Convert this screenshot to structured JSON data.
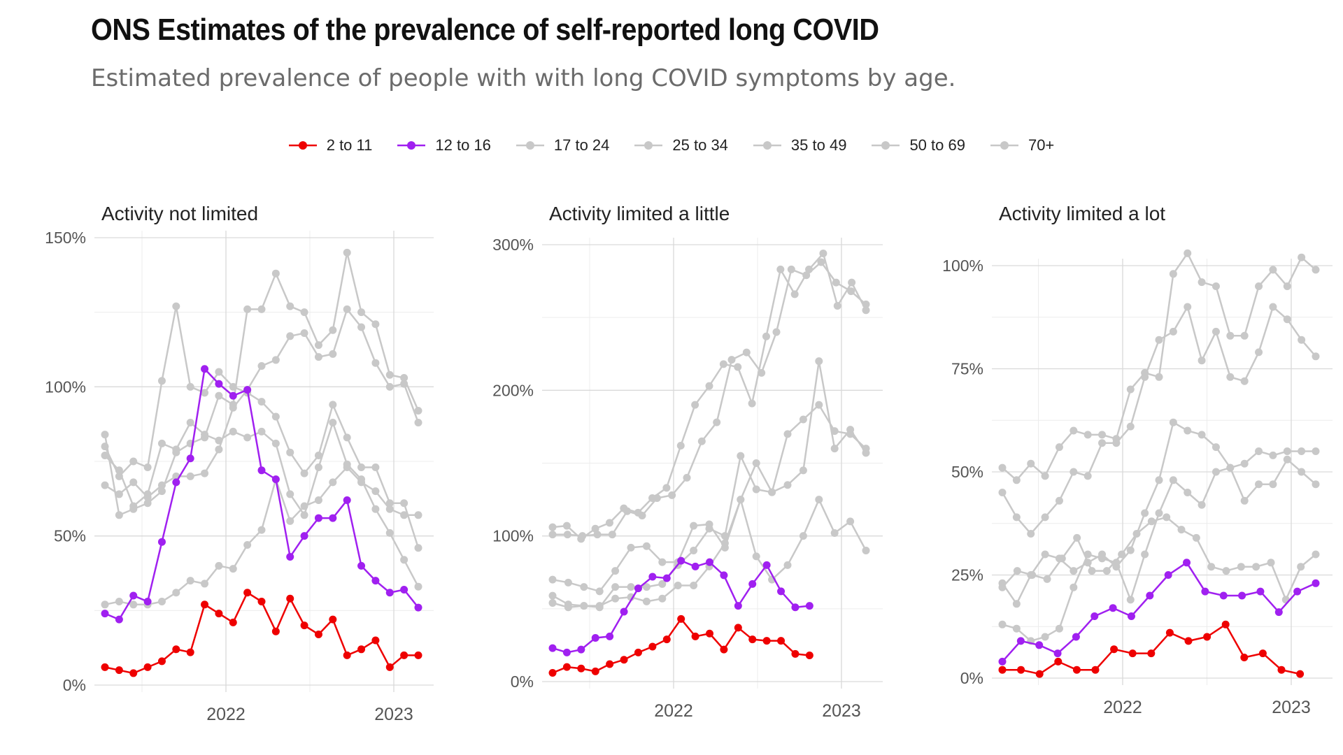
{
  "title": "ONS Estimates of the prevalence of self-reported long COVID",
  "subtitle": "Estimated prevalence of people with with long COVID symptoms by age.",
  "legend": [
    {
      "label": "2 to 11",
      "color": "#ee0000"
    },
    {
      "label": "12 to 16",
      "color": "#a020f0"
    },
    {
      "label": "17 to 24",
      "color": "#c8c8c8"
    },
    {
      "label": "25 to 34",
      "color": "#c8c8c8"
    },
    {
      "label": "35 to 49",
      "color": "#c8c8c8"
    },
    {
      "label": "50 to 69",
      "color": "#c8c8c8"
    },
    {
      "label": "70+",
      "color": "#c8c8c8"
    }
  ],
  "chart_data": [
    {
      "type": "line",
      "title": "Activity not limited",
      "x_ticks": [
        "2022",
        "2023"
      ],
      "ylim": [
        0,
        150
      ],
      "y_ticks": [
        0,
        50,
        100,
        150
      ],
      "y_tick_labels": [
        "0%",
        "50%",
        "100%",
        "150%"
      ],
      "series": [
        {
          "name": "2 to 11",
          "color": "#ee0000",
          "values": [
            6,
            5,
            4,
            6,
            8,
            12,
            11,
            27,
            24,
            21,
            31,
            28,
            18,
            29,
            20,
            17,
            22,
            10,
            12,
            15,
            6,
            10,
            10
          ]
        },
        {
          "name": "12 to 16",
          "color": "#a020f0",
          "values": [
            24,
            22,
            30,
            28,
            48,
            68,
            76,
            106,
            101,
            97,
            99,
            72,
            69,
            43,
            50,
            56,
            56,
            62,
            40,
            35,
            31,
            32,
            26
          ]
        },
        {
          "name": "17 to 24",
          "color": "#c8c8c8",
          "values": [
            27,
            28,
            27,
            27,
            28,
            31,
            35,
            34,
            40,
            39,
            47,
            52,
            69,
            55,
            60,
            62,
            68,
            73,
            68,
            65,
            59,
            57,
            57
          ]
        },
        {
          "name": "25 to 34",
          "color": "#c8c8c8",
          "values": [
            67,
            64,
            68,
            63,
            67,
            70,
            70,
            71,
            79,
            93,
            99,
            107,
            109,
            117,
            118,
            110,
            111,
            126,
            120,
            108,
            100,
            101,
            88
          ]
        },
        {
          "name": "35 to 49",
          "color": "#c8c8c8",
          "values": [
            84,
            57,
            59,
            61,
            65,
            78,
            81,
            83,
            97,
            94,
            126,
            126,
            138,
            127,
            125,
            114,
            119,
            145,
            125,
            121,
            104,
            103,
            92
          ]
        },
        {
          "name": "50 to 69",
          "color": "#c8c8c8",
          "values": [
            80,
            70,
            75,
            73,
            102,
            127,
            100,
            98,
            105,
            100,
            98,
            95,
            90,
            78,
            71,
            77,
            94,
            83,
            73,
            73,
            61,
            61,
            46
          ]
        },
        {
          "name": "70+",
          "color": "#c8c8c8",
          "values": [
            77,
            72,
            60,
            64,
            81,
            79,
            88,
            84,
            82,
            85,
            83,
            85,
            81,
            64,
            57,
            73,
            88,
            74,
            69,
            59,
            51,
            42,
            33
          ]
        }
      ]
    },
    {
      "type": "line",
      "title": "Activity limited a little",
      "x_ticks": [
        "2022",
        "2023"
      ],
      "ylim": [
        0,
        300
      ],
      "y_ticks": [
        0,
        100,
        200,
        300
      ],
      "y_tick_labels": [
        "0%",
        "100%",
        "200%",
        "300%"
      ],
      "series": [
        {
          "name": "2 to 11",
          "color": "#ee0000",
          "values": [
            6,
            10,
            9,
            7,
            12,
            15,
            20,
            24,
            29,
            43,
            31,
            33,
            22,
            37,
            29,
            28,
            28,
            19,
            18
          ]
        },
        {
          "name": "12 to 16",
          "color": "#a020f0",
          "values": [
            23,
            20,
            22,
            30,
            31,
            48,
            64,
            72,
            71,
            83,
            79,
            82,
            73,
            52,
            67,
            80,
            62,
            51,
            52
          ]
        },
        {
          "name": "17 to 24",
          "color": "#c8c8c8",
          "values": [
            54,
            51,
            52,
            52,
            57,
            58,
            55,
            57,
            66,
            66,
            79,
            95,
            125,
            86,
            70,
            80,
            100,
            125,
            102,
            110,
            90
          ]
        },
        {
          "name": "25 to 34",
          "color": "#c8c8c8",
          "values": [
            59,
            53,
            52,
            51,
            65,
            65,
            65,
            67,
            80,
            90,
            105,
            100,
            155,
            132,
            130,
            170,
            180,
            190,
            172,
            170,
            160
          ]
        },
        {
          "name": "35 to 49",
          "color": "#c8c8c8",
          "values": [
            70,
            68,
            65,
            62,
            76,
            92,
            93,
            82,
            82,
            107,
            108,
            92,
            125,
            150,
            130,
            135,
            145,
            220,
            160,
            173,
            157
          ]
        },
        {
          "name": "50 to 69",
          "color": "#c8c8c8",
          "values": [
            101,
            101,
            100,
            101,
            101,
            117,
            114,
            126,
            128,
            140,
            165,
            178,
            221,
            226,
            212,
            240,
            283,
            279,
            288,
            274,
            268,
            259
          ]
        },
        {
          "name": "70+",
          "color": "#c8c8c8",
          "values": [
            106,
            107,
            98,
            105,
            109,
            119,
            116,
            126,
            133,
            162,
            190,
            203,
            218,
            216,
            191,
            237,
            283,
            266,
            283,
            294,
            258,
            274,
            255
          ]
        }
      ]
    },
    {
      "type": "line",
      "title": "Activity limited a lot",
      "x_ticks": [
        "2022",
        "2023"
      ],
      "ylim": [
        0,
        100
      ],
      "y_ticks": [
        0,
        25,
        50,
        75,
        100
      ],
      "y_tick_labels": [
        "0%",
        "25%",
        "50%",
        "75%",
        "100%"
      ],
      "series": [
        {
          "name": "2 to 11",
          "color": "#ee0000",
          "values": [
            2,
            2,
            1,
            4,
            2,
            2,
            7,
            6,
            6,
            11,
            9,
            10,
            13,
            5,
            6,
            2,
            1
          ]
        },
        {
          "name": "12 to 16",
          "color": "#a020f0",
          "values": [
            4,
            9,
            8,
            6,
            10,
            15,
            17,
            15,
            20,
            25,
            28,
            21,
            20,
            20,
            21,
            16,
            21,
            23
          ]
        },
        {
          "name": "17 to 24",
          "color": "#c8c8c8",
          "values": [
            13,
            12,
            9,
            10,
            12,
            22,
            30,
            29,
            28,
            19,
            30,
            40,
            48,
            45,
            42,
            50,
            51,
            43,
            47,
            47,
            53,
            50,
            47
          ]
        },
        {
          "name": "25 to 34",
          "color": "#c8c8c8",
          "values": [
            22,
            26,
            25,
            24,
            29,
            34,
            26,
            26,
            30,
            35,
            38,
            39,
            36,
            34,
            27,
            26,
            27,
            27,
            28,
            19,
            27,
            30
          ]
        },
        {
          "name": "35 to 49",
          "color": "#c8c8c8",
          "values": [
            23,
            18,
            25,
            30,
            29,
            26,
            28,
            30,
            27,
            31,
            40,
            48,
            62,
            60,
            59,
            56,
            51,
            52,
            55,
            54,
            55,
            55,
            55
          ]
        },
        {
          "name": "50 to 69",
          "color": "#c8c8c8",
          "values": [
            45,
            39,
            35,
            39,
            43,
            50,
            49,
            57,
            57,
            61,
            73,
            82,
            84,
            90,
            77,
            84,
            73,
            72,
            79,
            90,
            87,
            82,
            78
          ]
        },
        {
          "name": "70+",
          "color": "#c8c8c8",
          "values": [
            51,
            48,
            52,
            49,
            56,
            60,
            59,
            59,
            58,
            70,
            74,
            73,
            98,
            103,
            96,
            95,
            83,
            83,
            95,
            99,
            95,
            102,
            99
          ]
        }
      ]
    }
  ]
}
